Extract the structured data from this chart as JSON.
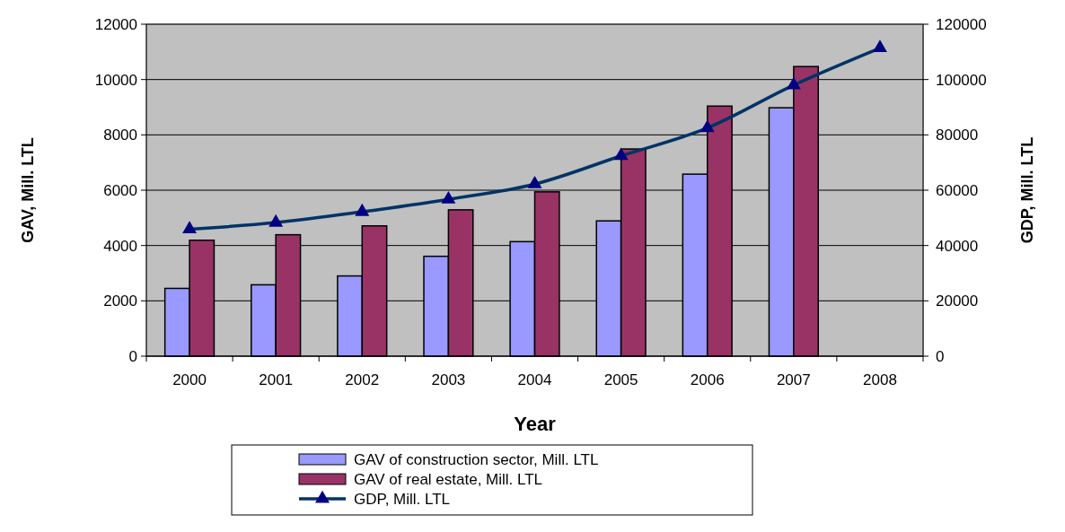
{
  "chart_data": {
    "type": "bar",
    "xlabel": "Year",
    "ylabel": "GAV, Mill. LTL",
    "y2label": "GDP, Mill. LTL",
    "categories": [
      "2000",
      "2001",
      "2002",
      "2003",
      "2004",
      "2005",
      "2006",
      "2007",
      "2008"
    ],
    "series": [
      {
        "name": "GAV of construction sector, Mill. LTL",
        "color": "#9999ff",
        "values": [
          2450,
          2580,
          2900,
          3610,
          4140,
          4890,
          6580,
          8980,
          null
        ]
      },
      {
        "name": "GAV of real estate, Mill. LTL",
        "color": "#993366",
        "values": [
          4190,
          4390,
          4710,
          5290,
          5940,
          7490,
          9040,
          10470,
          null
        ]
      },
      {
        "name": "GDP, Mill. LTL",
        "type": "line",
        "axis": "y2",
        "color": "#003366",
        "marker": "triangle",
        "values": [
          45900,
          48300,
          52200,
          56700,
          62200,
          72400,
          82500,
          98000,
          111400
        ]
      }
    ],
    "ylim": [
      0,
      12000
    ],
    "yticks": [
      0,
      2000,
      4000,
      6000,
      8000,
      10000,
      12000
    ],
    "y2lim": [
      0,
      120000
    ],
    "y2ticks": [
      0,
      20000,
      40000,
      60000,
      80000,
      100000,
      120000
    ],
    "grid": "y",
    "legend": "bottom"
  }
}
